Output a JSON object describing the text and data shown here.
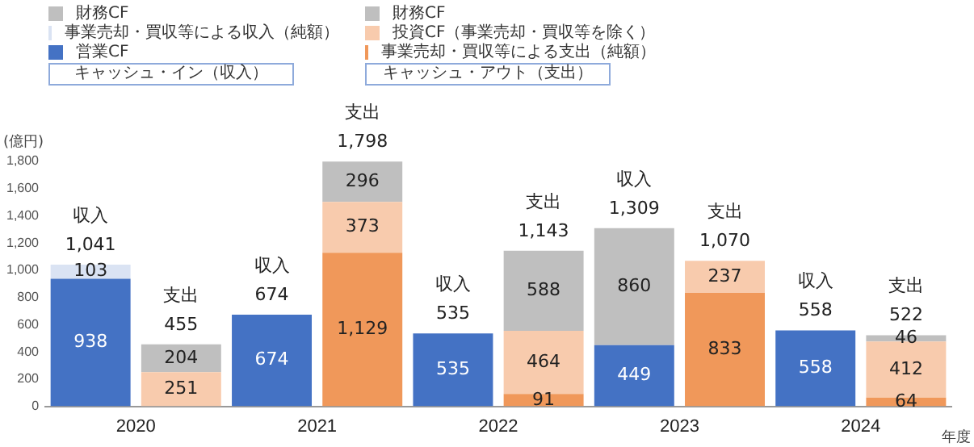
{
  "chart_data": {
    "type": "bar",
    "stacked": true,
    "categories": [
      "2020",
      null,
      "2021",
      null,
      "2022",
      null,
      "2023",
      null,
      "2024",
      null
    ],
    "series": [
      {
        "name": "営業CF",
        "color": "#4472c4",
        "values": [
          938,
          null,
          674,
          null,
          535,
          null,
          449,
          null,
          558,
          null
        ],
        "value_labels": [
          "938",
          null,
          "674",
          null,
          "535",
          null,
          "449",
          null,
          "558",
          null
        ]
      },
      {
        "name": "事業売却・買収等による収入（純額）",
        "color": "#dae3f3",
        "values": [
          103,
          null,
          null,
          null,
          null,
          null,
          null,
          null,
          null,
          null
        ],
        "value_labels": [
          "103",
          null,
          null,
          null,
          null,
          null,
          null,
          null,
          null,
          null
        ]
      },
      {
        "name": "財務CF",
        "color": "#bfbfbf",
        "values": [
          null,
          null,
          null,
          null,
          null,
          null,
          860,
          null,
          null,
          null
        ],
        "value_labels": [
          null,
          null,
          null,
          null,
          null,
          null,
          "860",
          null,
          null,
          null
        ]
      },
      {
        "name": "事業売却・買収等による支出（純額）",
        "color": "#f0985a",
        "values": [
          null,
          null,
          null,
          1129,
          null,
          91,
          null,
          833,
          null,
          64
        ],
        "value_labels": [
          null,
          null,
          null,
          "1,129",
          null,
          "91",
          null,
          "833",
          null,
          "64"
        ]
      },
      {
        "name": "投資CF（事業売却・買収等を除く）",
        "color": "#f8cbad",
        "values": [
          null,
          251,
          null,
          373,
          null,
          464,
          null,
          237,
          null,
          412
        ],
        "value_labels": [
          null,
          "251",
          null,
          "373",
          null,
          "464",
          null,
          "237",
          null,
          "412"
        ]
      },
      {
        "name": "財務CF",
        "color": "#bfbfbf",
        "values": [
          null,
          204,
          null,
          296,
          null,
          588,
          null,
          null,
          null,
          46
        ],
        "value_labels": [
          null,
          "204",
          null,
          "296",
          null,
          "588",
          null,
          null,
          null,
          "46"
        ]
      }
    ],
    "totals": [
      "収入\n1,041",
      "支出\n455",
      "収入\n674",
      "支出\n1,798",
      "収入\n535",
      "支出\n1,143",
      "収入\n1,309",
      "支出\n1,070",
      "収入\n558",
      "支出\n522"
    ],
    "ylim": [
      0,
      1800
    ],
    "yticks": [
      0,
      200,
      400,
      600,
      800,
      {
        "value": 1000,
        "label": "1,000"
      },
      {
        "value": 1200,
        "label": "1,200"
      },
      {
        "value": 1400,
        "label": "1,400"
      },
      {
        "value": 1600,
        "label": "1,600"
      },
      {
        "value": 1800,
        "label": "1,800"
      }
    ],
    "ylabel": "(億円)",
    "xlabel": "年度",
    "grid": false,
    "legend": "top",
    "annotations": [
      "キャッシュ・イン（収入）",
      "キャッシュ・アウト（支出）"
    ]
  }
}
